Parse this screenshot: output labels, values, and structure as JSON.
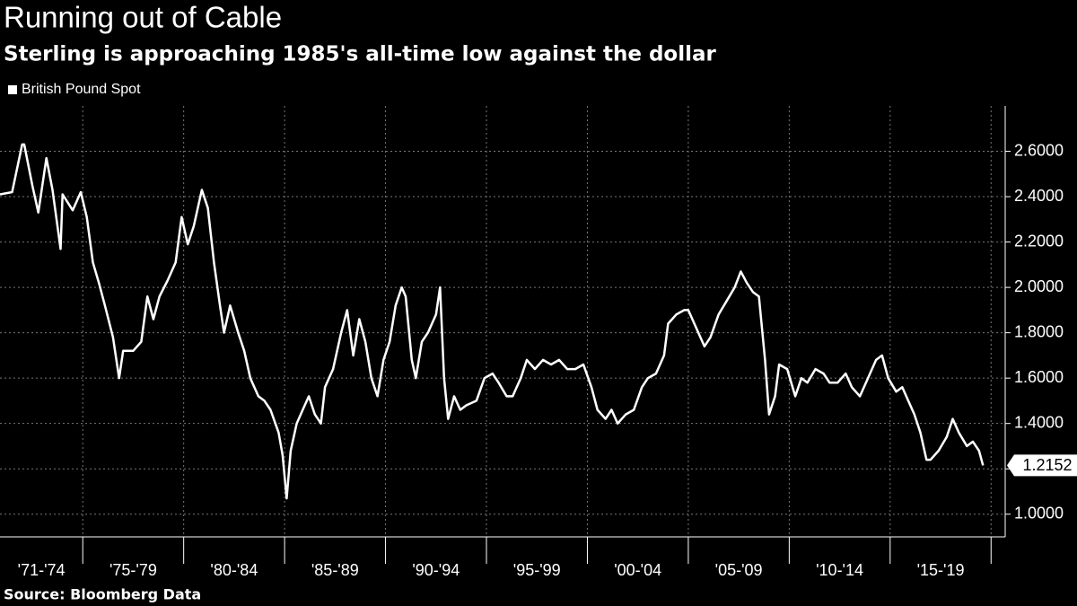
{
  "chart_data": {
    "type": "line",
    "title": "Running out of Cable",
    "subtitle": "Sterling is approaching 1985's all-time low against the dollar",
    "source": "Source: Bloomberg Data",
    "legend": "top-left",
    "grid": true,
    "x_period_labels": [
      "'71-'74",
      "'75-'79",
      "'80-'84",
      "'85-'89",
      "'90-'94",
      "'95-'99",
      "'00-'04",
      "'05-'09",
      "'10-'14",
      "'15-'19"
    ],
    "xlim": [
      1970.9,
      2020.7
    ],
    "xticks": [
      1975,
      1980,
      1985,
      1990,
      1995,
      2000,
      2005,
      2010,
      2015,
      2020
    ],
    "ylim": [
      0.9,
      2.8
    ],
    "yticks": [
      {
        "value": 1.0,
        "label": "1.0000"
      },
      {
        "value": 1.2,
        "label": "1.2000"
      },
      {
        "value": 1.4,
        "label": "1.4000"
      },
      {
        "value": 1.6,
        "label": "1.6000"
      },
      {
        "value": 1.8,
        "label": "1.8000"
      },
      {
        "value": 2.0,
        "label": "2.0000"
      },
      {
        "value": 2.2,
        "label": "2.2000"
      },
      {
        "value": 2.4,
        "label": "2.4000"
      },
      {
        "value": 2.6,
        "label": "2.6000"
      }
    ],
    "last_value_label": "1.2152",
    "series": [
      {
        "name": "British Pound Spot",
        "color": "#ffffff",
        "x": [
          1970.9,
          1971.5,
          1972.0,
          1972.1,
          1972.5,
          1972.8,
          1973.0,
          1973.2,
          1973.5,
          1973.9,
          1974.0,
          1974.5,
          1974.9,
          1975.2,
          1975.5,
          1975.8,
          1976.1,
          1976.5,
          1976.8,
          1977.0,
          1977.5,
          1977.9,
          1978.2,
          1978.5,
          1978.8,
          1979.2,
          1979.6,
          1979.9,
          1980.2,
          1980.5,
          1980.9,
          1981.2,
          1981.5,
          1981.8,
          1982.0,
          1982.3,
          1982.7,
          1983.0,
          1983.3,
          1983.7,
          1984.0,
          1984.3,
          1984.7,
          1984.9,
          1985.1,
          1985.3,
          1985.6,
          1985.9,
          1986.2,
          1986.5,
          1986.8,
          1987.0,
          1987.4,
          1987.8,
          1988.1,
          1988.4,
          1988.7,
          1989.0,
          1989.3,
          1989.6,
          1989.9,
          1990.2,
          1990.5,
          1990.8,
          1991.0,
          1991.3,
          1991.5,
          1991.8,
          1992.1,
          1992.5,
          1992.7,
          1992.9,
          1993.1,
          1993.4,
          1993.7,
          1994.0,
          1994.5,
          1994.9,
          1995.3,
          1995.6,
          1996.0,
          1996.3,
          1996.7,
          1997.0,
          1997.4,
          1997.8,
          1998.2,
          1998.6,
          1999.0,
          1999.4,
          1999.8,
          2000.2,
          2000.5,
          2000.9,
          2001.2,
          2001.5,
          2001.9,
          2002.3,
          2002.7,
          2003.0,
          2003.4,
          2003.8,
          2004.0,
          2004.4,
          2004.8,
          2005.0,
          2005.4,
          2005.8,
          2006.1,
          2006.5,
          2006.9,
          2007.3,
          2007.6,
          2007.9,
          2008.2,
          2008.5,
          2008.8,
          2009.0,
          2009.3,
          2009.5,
          2009.9,
          2010.3,
          2010.6,
          2010.9,
          2011.3,
          2011.7,
          2012.0,
          2012.4,
          2012.8,
          2013.1,
          2013.5,
          2013.9,
          2014.3,
          2014.6,
          2014.9,
          2015.3,
          2015.6,
          2015.9,
          2016.2,
          2016.5,
          2016.8,
          2017.0,
          2017.4,
          2017.8,
          2018.1,
          2018.4,
          2018.8,
          2019.1,
          2019.4,
          2019.6
        ],
        "values": [
          2.41,
          2.42,
          2.63,
          2.63,
          2.45,
          2.33,
          2.45,
          2.57,
          2.43,
          2.17,
          2.41,
          2.34,
          2.42,
          2.31,
          2.11,
          2.02,
          1.92,
          1.78,
          1.6,
          1.72,
          1.72,
          1.76,
          1.96,
          1.86,
          1.96,
          2.03,
          2.11,
          2.31,
          2.19,
          2.27,
          2.43,
          2.35,
          2.11,
          1.92,
          1.8,
          1.92,
          1.8,
          1.72,
          1.6,
          1.52,
          1.5,
          1.46,
          1.36,
          1.26,
          1.07,
          1.28,
          1.4,
          1.46,
          1.52,
          1.44,
          1.4,
          1.56,
          1.64,
          1.8,
          1.9,
          1.7,
          1.86,
          1.76,
          1.6,
          1.52,
          1.68,
          1.76,
          1.92,
          2.0,
          1.96,
          1.68,
          1.6,
          1.76,
          1.8,
          1.88,
          2.0,
          1.6,
          1.42,
          1.52,
          1.46,
          1.48,
          1.5,
          1.6,
          1.62,
          1.58,
          1.52,
          1.52,
          1.6,
          1.68,
          1.64,
          1.68,
          1.66,
          1.68,
          1.64,
          1.64,
          1.66,
          1.56,
          1.46,
          1.42,
          1.46,
          1.4,
          1.44,
          1.46,
          1.56,
          1.6,
          1.62,
          1.7,
          1.84,
          1.88,
          1.9,
          1.9,
          1.82,
          1.74,
          1.78,
          1.88,
          1.94,
          2.0,
          2.07,
          2.02,
          1.98,
          1.96,
          1.68,
          1.44,
          1.52,
          1.66,
          1.64,
          1.52,
          1.6,
          1.58,
          1.64,
          1.62,
          1.58,
          1.58,
          1.62,
          1.56,
          1.52,
          1.6,
          1.68,
          1.7,
          1.6,
          1.54,
          1.56,
          1.5,
          1.44,
          1.36,
          1.24,
          1.24,
          1.28,
          1.34,
          1.42,
          1.36,
          1.3,
          1.32,
          1.28,
          1.2152
        ]
      }
    ]
  }
}
